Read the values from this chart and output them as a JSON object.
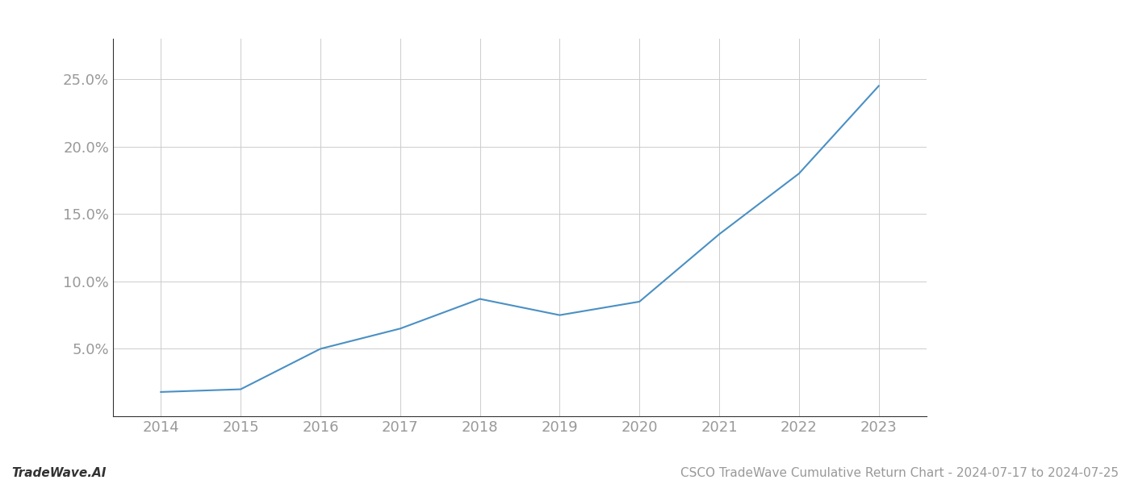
{
  "x_years": [
    2014,
    2015,
    2016,
    2017,
    2018,
    2019,
    2020,
    2021,
    2022,
    2023
  ],
  "y_values": [
    0.018,
    0.02,
    0.05,
    0.065,
    0.087,
    0.075,
    0.085,
    0.135,
    0.18,
    0.245
  ],
  "line_color": "#4a90c4",
  "line_width": 1.5,
  "background_color": "#ffffff",
  "grid_color": "#cccccc",
  "title": "CSCO TradeWave Cumulative Return Chart - 2024-07-17 to 2024-07-25",
  "footer_left": "TradeWave.AI",
  "ylim": [
    0,
    0.28
  ],
  "yticks": [
    0.05,
    0.1,
    0.15,
    0.2,
    0.25
  ],
  "ytick_labels": [
    "5.0%",
    "10.0%",
    "15.0%",
    "20.0%",
    "25.0%"
  ],
  "xticks": [
    2014,
    2015,
    2016,
    2017,
    2018,
    2019,
    2020,
    2021,
    2022,
    2023
  ],
  "title_fontsize": 11,
  "footer_fontsize": 11,
  "tick_fontsize": 13,
  "tick_color": "#999999",
  "spine_color": "#333333"
}
